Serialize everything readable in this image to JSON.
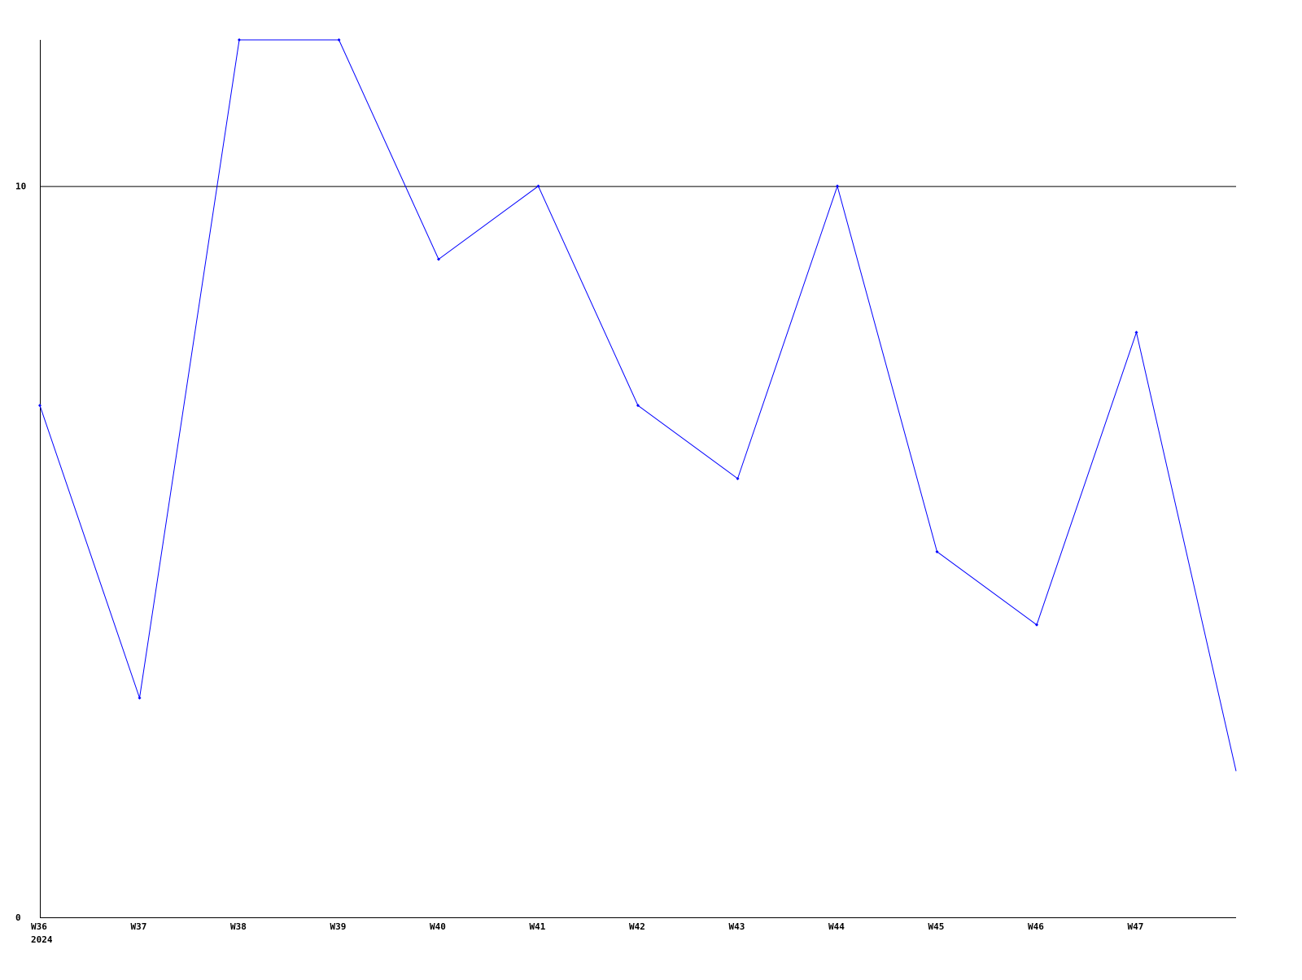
{
  "chart_data": {
    "type": "line",
    "title": "",
    "xlabel": "",
    "ylabel": "",
    "categories": [
      "W36",
      "W37",
      "W38",
      "W39",
      "W40",
      "W41",
      "W42",
      "W43",
      "W44",
      "W45",
      "W46",
      "W47",
      ""
    ],
    "year_label": "2024",
    "series": [
      {
        "values": [
          7,
          3,
          12,
          12,
          9,
          10,
          7,
          6,
          10,
          5,
          4,
          8,
          2
        ],
        "color": "#0000ff"
      }
    ],
    "ylim": [
      0,
      12
    ],
    "y_ticks": [
      0,
      10
    ],
    "gridlines_at": [
      10
    ],
    "grid": true,
    "legend": "none"
  }
}
